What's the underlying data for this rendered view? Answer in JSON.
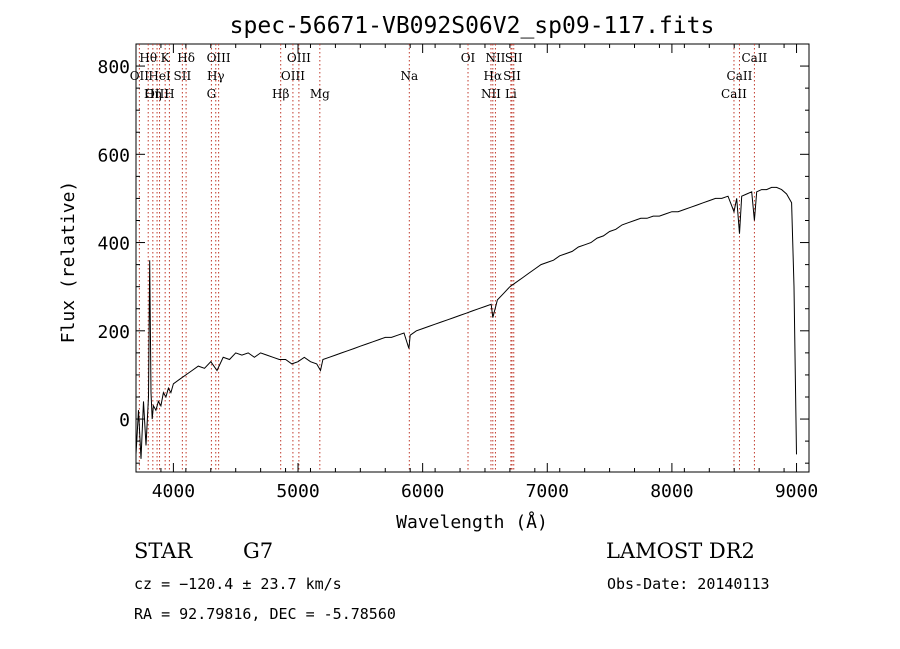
{
  "chart_data": {
    "type": "line",
    "title": "spec-56671-VB092S06V2_sp09-117.fits",
    "xlabel": "Wavelength (Å)",
    "ylabel": "Flux (relative)",
    "xlim": [
      3700,
      9100
    ],
    "ylim": [
      -120,
      850
    ],
    "xticks": [
      4000,
      5000,
      6000,
      7000,
      8000,
      9000
    ],
    "yticks": [
      0,
      200,
      400,
      600,
      800
    ],
    "grid": false,
    "legend": "none",
    "series": [
      {
        "x": [
          3700,
          3720,
          3740,
          3760,
          3780,
          3800,
          3810,
          3820,
          3830,
          3840,
          3860,
          3880,
          3900,
          3920,
          3940,
          3960,
          3980,
          4000,
          4050,
          4100,
          4150,
          4200,
          4250,
          4300,
          4350,
          4400,
          4450,
          4500,
          4550,
          4600,
          4650,
          4700,
          4750,
          4800,
          4850,
          4900,
          4950,
          5000,
          5050,
          5100,
          5150,
          5180,
          5200,
          5250,
          5300,
          5350,
          5400,
          5450,
          5500,
          5550,
          5600,
          5650,
          5700,
          5750,
          5800,
          5850,
          5890,
          5900,
          5950,
          6000,
          6050,
          6100,
          6150,
          6200,
          6250,
          6300,
          6350,
          6400,
          6450,
          6500,
          6550,
          6563,
          6600,
          6650,
          6700,
          6750,
          6800,
          6850,
          6900,
          6950,
          7000,
          7050,
          7100,
          7150,
          7200,
          7250,
          7300,
          7350,
          7400,
          7450,
          7500,
          7550,
          7600,
          7650,
          7700,
          7750,
          7800,
          7850,
          7900,
          7950,
          8000,
          8050,
          8100,
          8150,
          8200,
          8250,
          8300,
          8350,
          8400,
          8450,
          8498,
          8520,
          8542,
          8560,
          8600,
          8640,
          8662,
          8680,
          8720,
          8760,
          8800,
          8840,
          8880,
          8920,
          8960,
          8980,
          8990,
          9000
        ],
        "values": [
          -80,
          20,
          -90,
          40,
          -60,
          50,
          360,
          60,
          0,
          30,
          20,
          40,
          30,
          60,
          50,
          70,
          60,
          80,
          90,
          100,
          110,
          120,
          115,
          130,
          110,
          140,
          135,
          150,
          145,
          150,
          140,
          150,
          145,
          140,
          135,
          135,
          125,
          130,
          140,
          130,
          125,
          110,
          135,
          140,
          145,
          150,
          155,
          160,
          165,
          170,
          175,
          180,
          185,
          185,
          190,
          195,
          160,
          190,
          200,
          205,
          210,
          215,
          220,
          225,
          230,
          235,
          240,
          245,
          250,
          255,
          260,
          230,
          270,
          285,
          300,
          310,
          320,
          330,
          340,
          350,
          355,
          360,
          370,
          375,
          380,
          390,
          395,
          400,
          410,
          415,
          425,
          430,
          440,
          445,
          450,
          455,
          455,
          460,
          460,
          465,
          470,
          470,
          475,
          480,
          485,
          490,
          495,
          500,
          500,
          505,
          470,
          500,
          420,
          505,
          510,
          515,
          450,
          515,
          520,
          520,
          525,
          525,
          520,
          510,
          490,
          300,
          100,
          -80
        ]
      }
    ],
    "line_markers": [
      {
        "label": "Hθ",
        "wavelength": 3798,
        "row": 0
      },
      {
        "label": "K",
        "wavelength": 3934,
        "row": 0
      },
      {
        "label": "Hδ",
        "wavelength": 4102,
        "row": 0
      },
      {
        "label": "OIII",
        "wavelength": 4363,
        "row": 0
      },
      {
        "label": "OIII",
        "wavelength": 5007,
        "row": 0
      },
      {
        "label": "OI",
        "wavelength": 6364,
        "row": 0
      },
      {
        "label": "NII",
        "wavelength": 6584,
        "row": 0
      },
      {
        "label": "SII",
        "wavelength": 6731,
        "row": 0
      },
      {
        "label": "CaII",
        "wavelength": 8662,
        "row": 0
      },
      {
        "label": "OII",
        "wavelength": 3727,
        "row": 1
      },
      {
        "label": "HeI",
        "wavelength": 3889,
        "row": 1
      },
      {
        "label": "SII",
        "wavelength": 4072,
        "row": 1
      },
      {
        "label": "Hγ",
        "wavelength": 4340,
        "row": 1
      },
      {
        "label": "OIII",
        "wavelength": 4959,
        "row": 1
      },
      {
        "label": "Na",
        "wavelength": 5893,
        "row": 1
      },
      {
        "label": "Hα",
        "wavelength": 6563,
        "row": 1
      },
      {
        "label": "SII",
        "wavelength": 6717,
        "row": 1
      },
      {
        "label": "CaII",
        "wavelength": 8542,
        "row": 1
      },
      {
        "label": "OIII",
        "wavelength": 3869,
        "row": 2
      },
      {
        "label": "Hη",
        "wavelength": 3835,
        "row": 2
      },
      {
        "label": "H",
        "wavelength": 3968,
        "row": 2
      },
      {
        "label": "G",
        "wavelength": 4305,
        "row": 2
      },
      {
        "label": "Hβ",
        "wavelength": 4861,
        "row": 2
      },
      {
        "label": "Mg",
        "wavelength": 5175,
        "row": 2
      },
      {
        "label": "NII",
        "wavelength": 6548,
        "row": 2
      },
      {
        "label": "Li",
        "wavelength": 6708,
        "row": 2
      },
      {
        "label": "CaII",
        "wavelength": 8498,
        "row": 2
      }
    ]
  },
  "info": {
    "class": "STAR",
    "subclass": "G7",
    "survey": "LAMOST DR2",
    "cz": "cz = −120.4 ± 23.7 km/s",
    "obsdate": "Obs-Date: 20140113",
    "radec": "RA =  92.79816, DEC =  -5.78560"
  }
}
